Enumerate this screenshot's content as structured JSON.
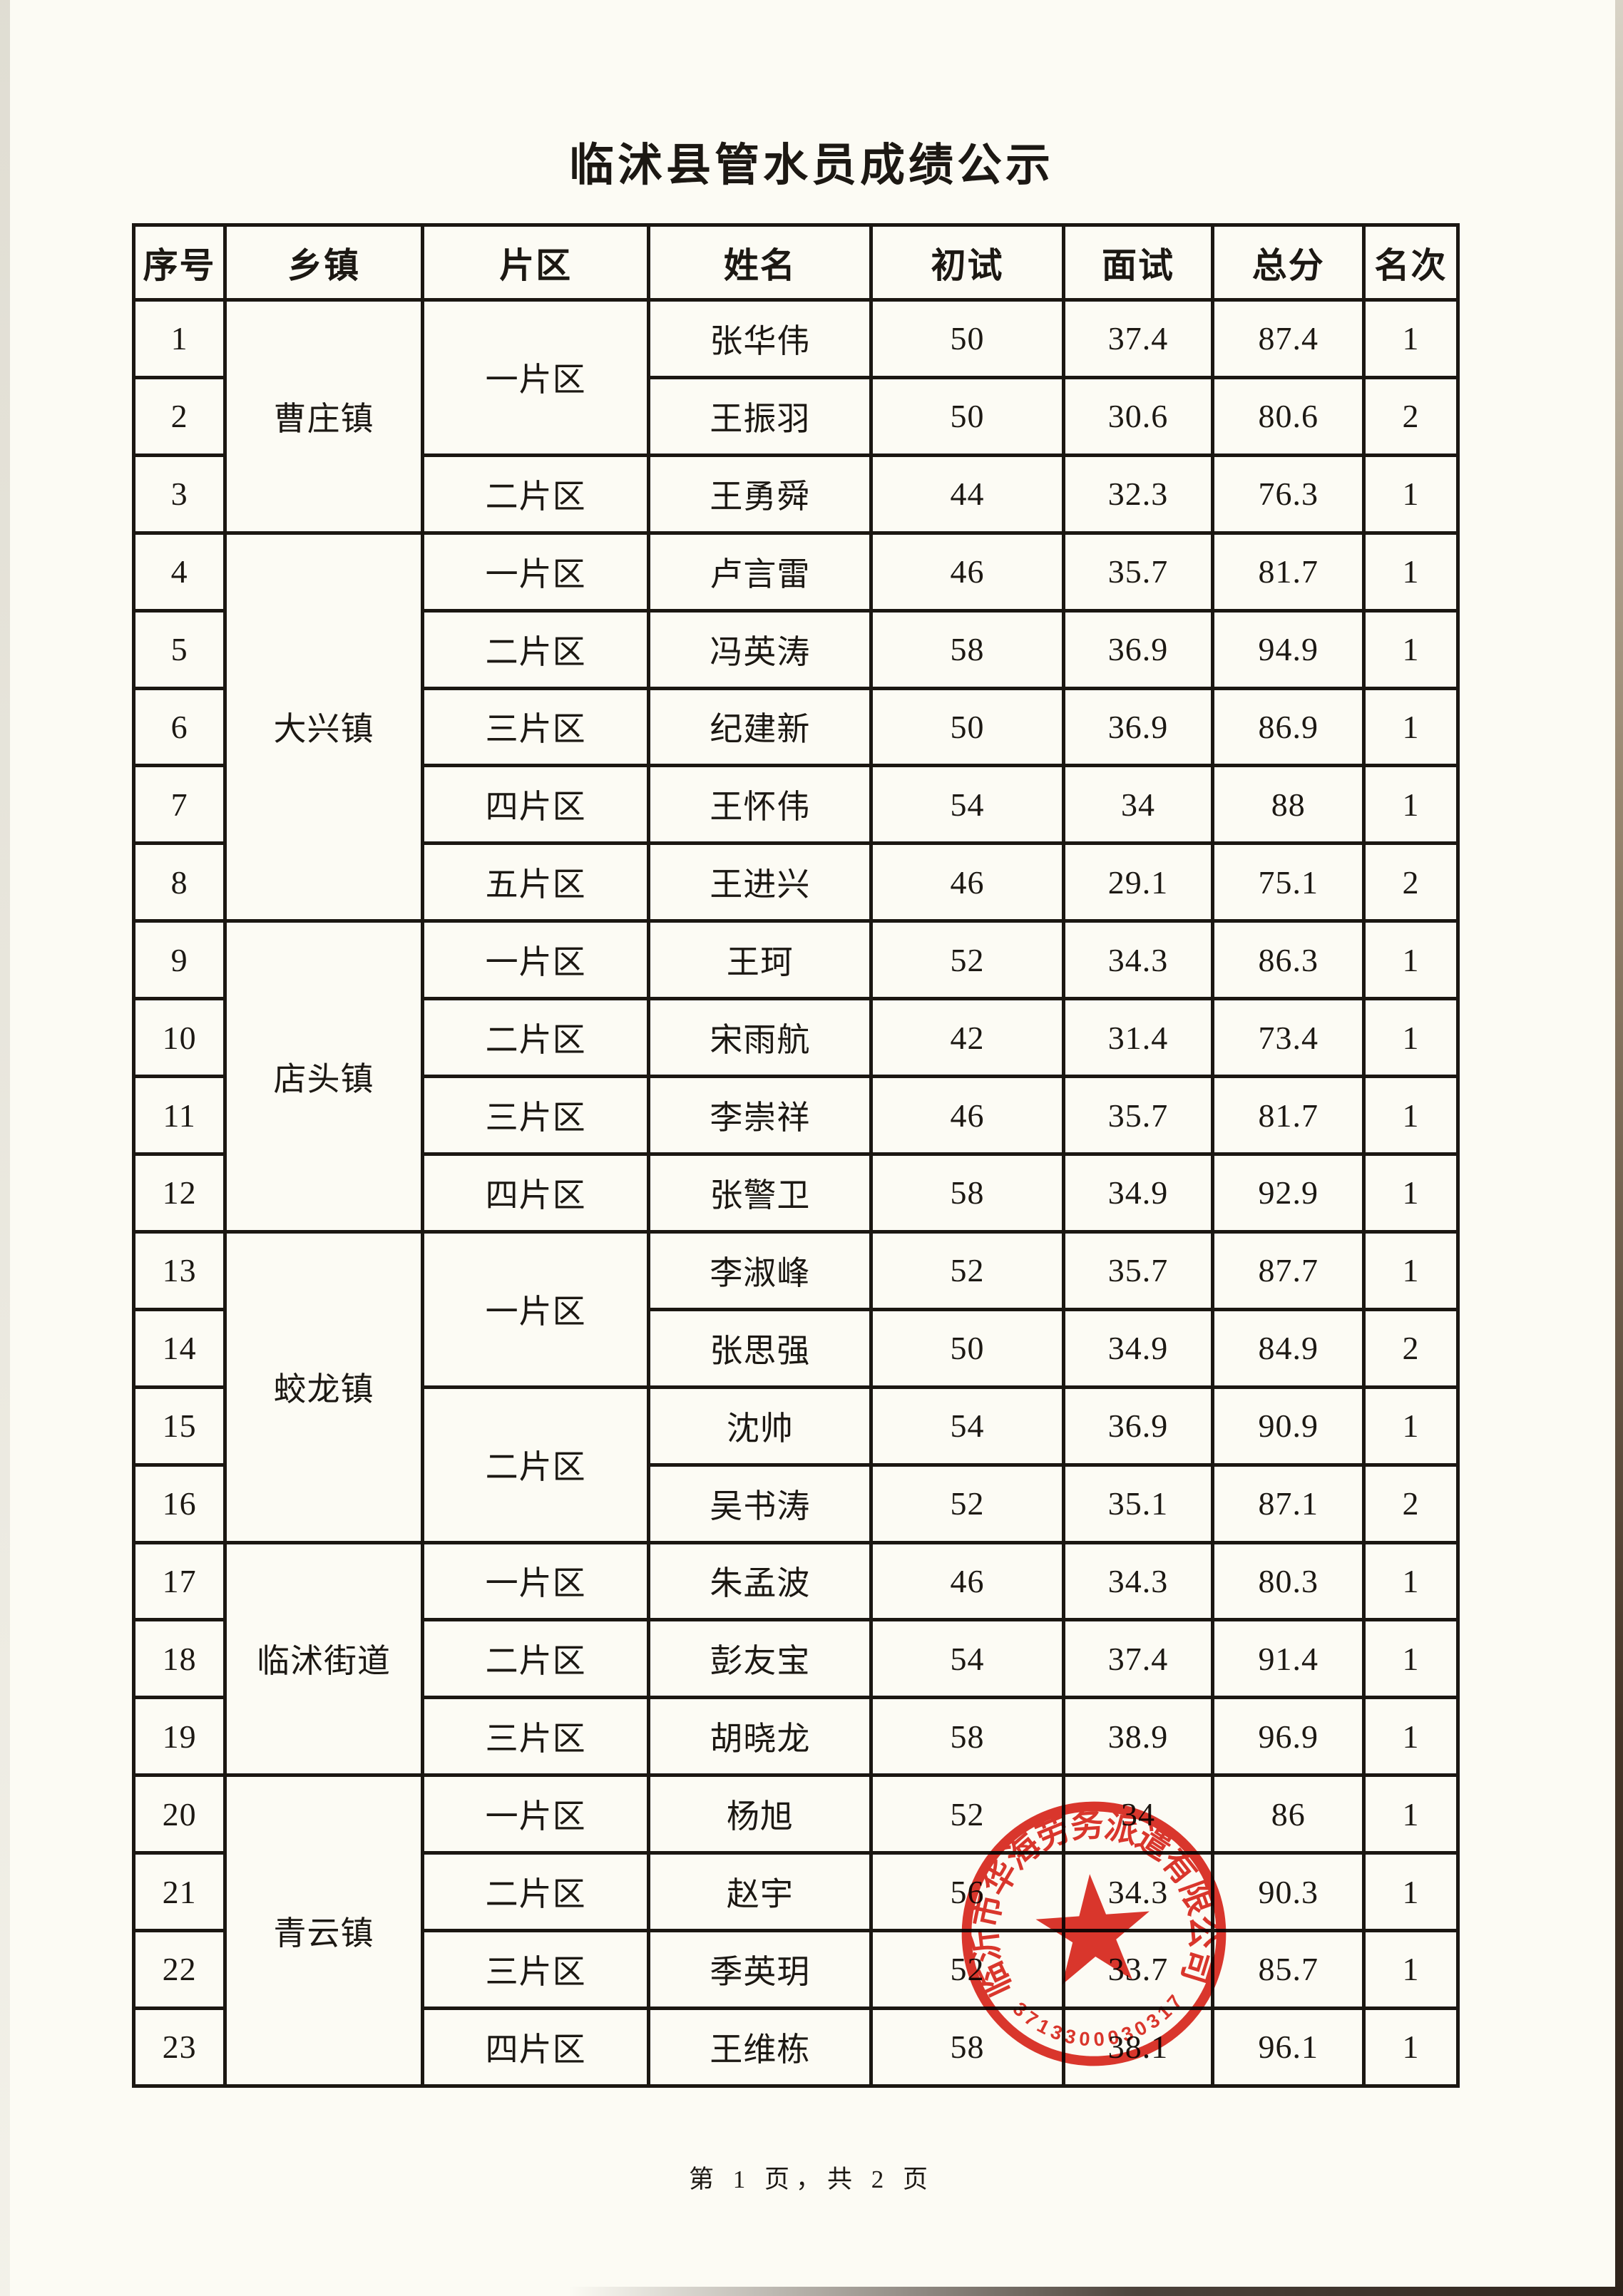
{
  "page": {
    "title": "临沭县管水员成绩公示",
    "footer": "第 1 页，共 2 页"
  },
  "colors": {
    "ink": "#1b1712",
    "paper": "#fcfbf4",
    "stamp_red": "#d9261c"
  },
  "table": {
    "headers": [
      "序号",
      "乡镇",
      "片区",
      "姓名",
      "初试",
      "面试",
      "总分",
      "名次"
    ],
    "rows": [
      [
        "1",
        {
          "t": "曹庄镇",
          "rs": 3
        },
        {
          "t": "一片区",
          "rs": 2
        },
        "张华伟",
        "50",
        "37.4",
        "87.4",
        "1"
      ],
      [
        "2",
        null,
        null,
        "王振羽",
        "50",
        "30.6",
        "80.6",
        "2"
      ],
      [
        "3",
        null,
        "二片区",
        "王勇舜",
        "44",
        "32.3",
        "76.3",
        "1"
      ],
      [
        "4",
        {
          "t": "大兴镇",
          "rs": 5
        },
        "一片区",
        "卢言雷",
        "46",
        "35.7",
        "81.7",
        "1"
      ],
      [
        "5",
        null,
        "二片区",
        "冯英涛",
        "58",
        "36.9",
        "94.9",
        "1"
      ],
      [
        "6",
        null,
        "三片区",
        "纪建新",
        "50",
        "36.9",
        "86.9",
        "1"
      ],
      [
        "7",
        null,
        "四片区",
        "王怀伟",
        "54",
        "34",
        "88",
        "1"
      ],
      [
        "8",
        null,
        "五片区",
        "王进兴",
        "46",
        "29.1",
        "75.1",
        "2"
      ],
      [
        "9",
        {
          "t": "店头镇",
          "rs": 4
        },
        "一片区",
        "王珂",
        "52",
        "34.3",
        "86.3",
        "1"
      ],
      [
        "10",
        null,
        "二片区",
        "宋雨航",
        "42",
        "31.4",
        "73.4",
        "1"
      ],
      [
        "11",
        null,
        "三片区",
        "李崇祥",
        "46",
        "35.7",
        "81.7",
        "1"
      ],
      [
        "12",
        null,
        "四片区",
        "张警卫",
        "58",
        "34.9",
        "92.9",
        "1"
      ],
      [
        "13",
        {
          "t": "蛟龙镇",
          "rs": 4
        },
        {
          "t": "一片区",
          "rs": 2
        },
        "李淑峰",
        "52",
        "35.7",
        "87.7",
        "1"
      ],
      [
        "14",
        null,
        null,
        "张思强",
        "50",
        "34.9",
        "84.9",
        "2"
      ],
      [
        "15",
        null,
        {
          "t": "二片区",
          "rs": 2
        },
        "沈帅",
        "54",
        "36.9",
        "90.9",
        "1"
      ],
      [
        "16",
        null,
        null,
        "吴书涛",
        "52",
        "35.1",
        "87.1",
        "2"
      ],
      [
        "17",
        {
          "t": "临沭街道",
          "rs": 3
        },
        "一片区",
        "朱孟波",
        "46",
        "34.3",
        "80.3",
        "1"
      ],
      [
        "18",
        null,
        "二片区",
        "彭友宝",
        "54",
        "37.4",
        "91.4",
        "1"
      ],
      [
        "19",
        null,
        "三片区",
        "胡晓龙",
        "58",
        "38.9",
        "96.9",
        "1"
      ],
      [
        "20",
        {
          "t": "青云镇",
          "rs": 4
        },
        "一片区",
        "杨旭",
        "52",
        "34",
        "86",
        "1"
      ],
      [
        "21",
        null,
        "二片区",
        "赵宇",
        "56",
        "34.3",
        "90.3",
        "1"
      ],
      [
        "22",
        null,
        "三片区",
        "季英玥",
        "52",
        "33.7",
        "85.7",
        "1"
      ],
      [
        "23",
        null,
        "四片区",
        "王维栋",
        "58",
        "38.1",
        "96.1",
        "1"
      ]
    ]
  },
  "stamp": {
    "company": "临沂市华海劳务派遣有限公司",
    "number": "3713300030317",
    "star_icon": "red-star"
  }
}
